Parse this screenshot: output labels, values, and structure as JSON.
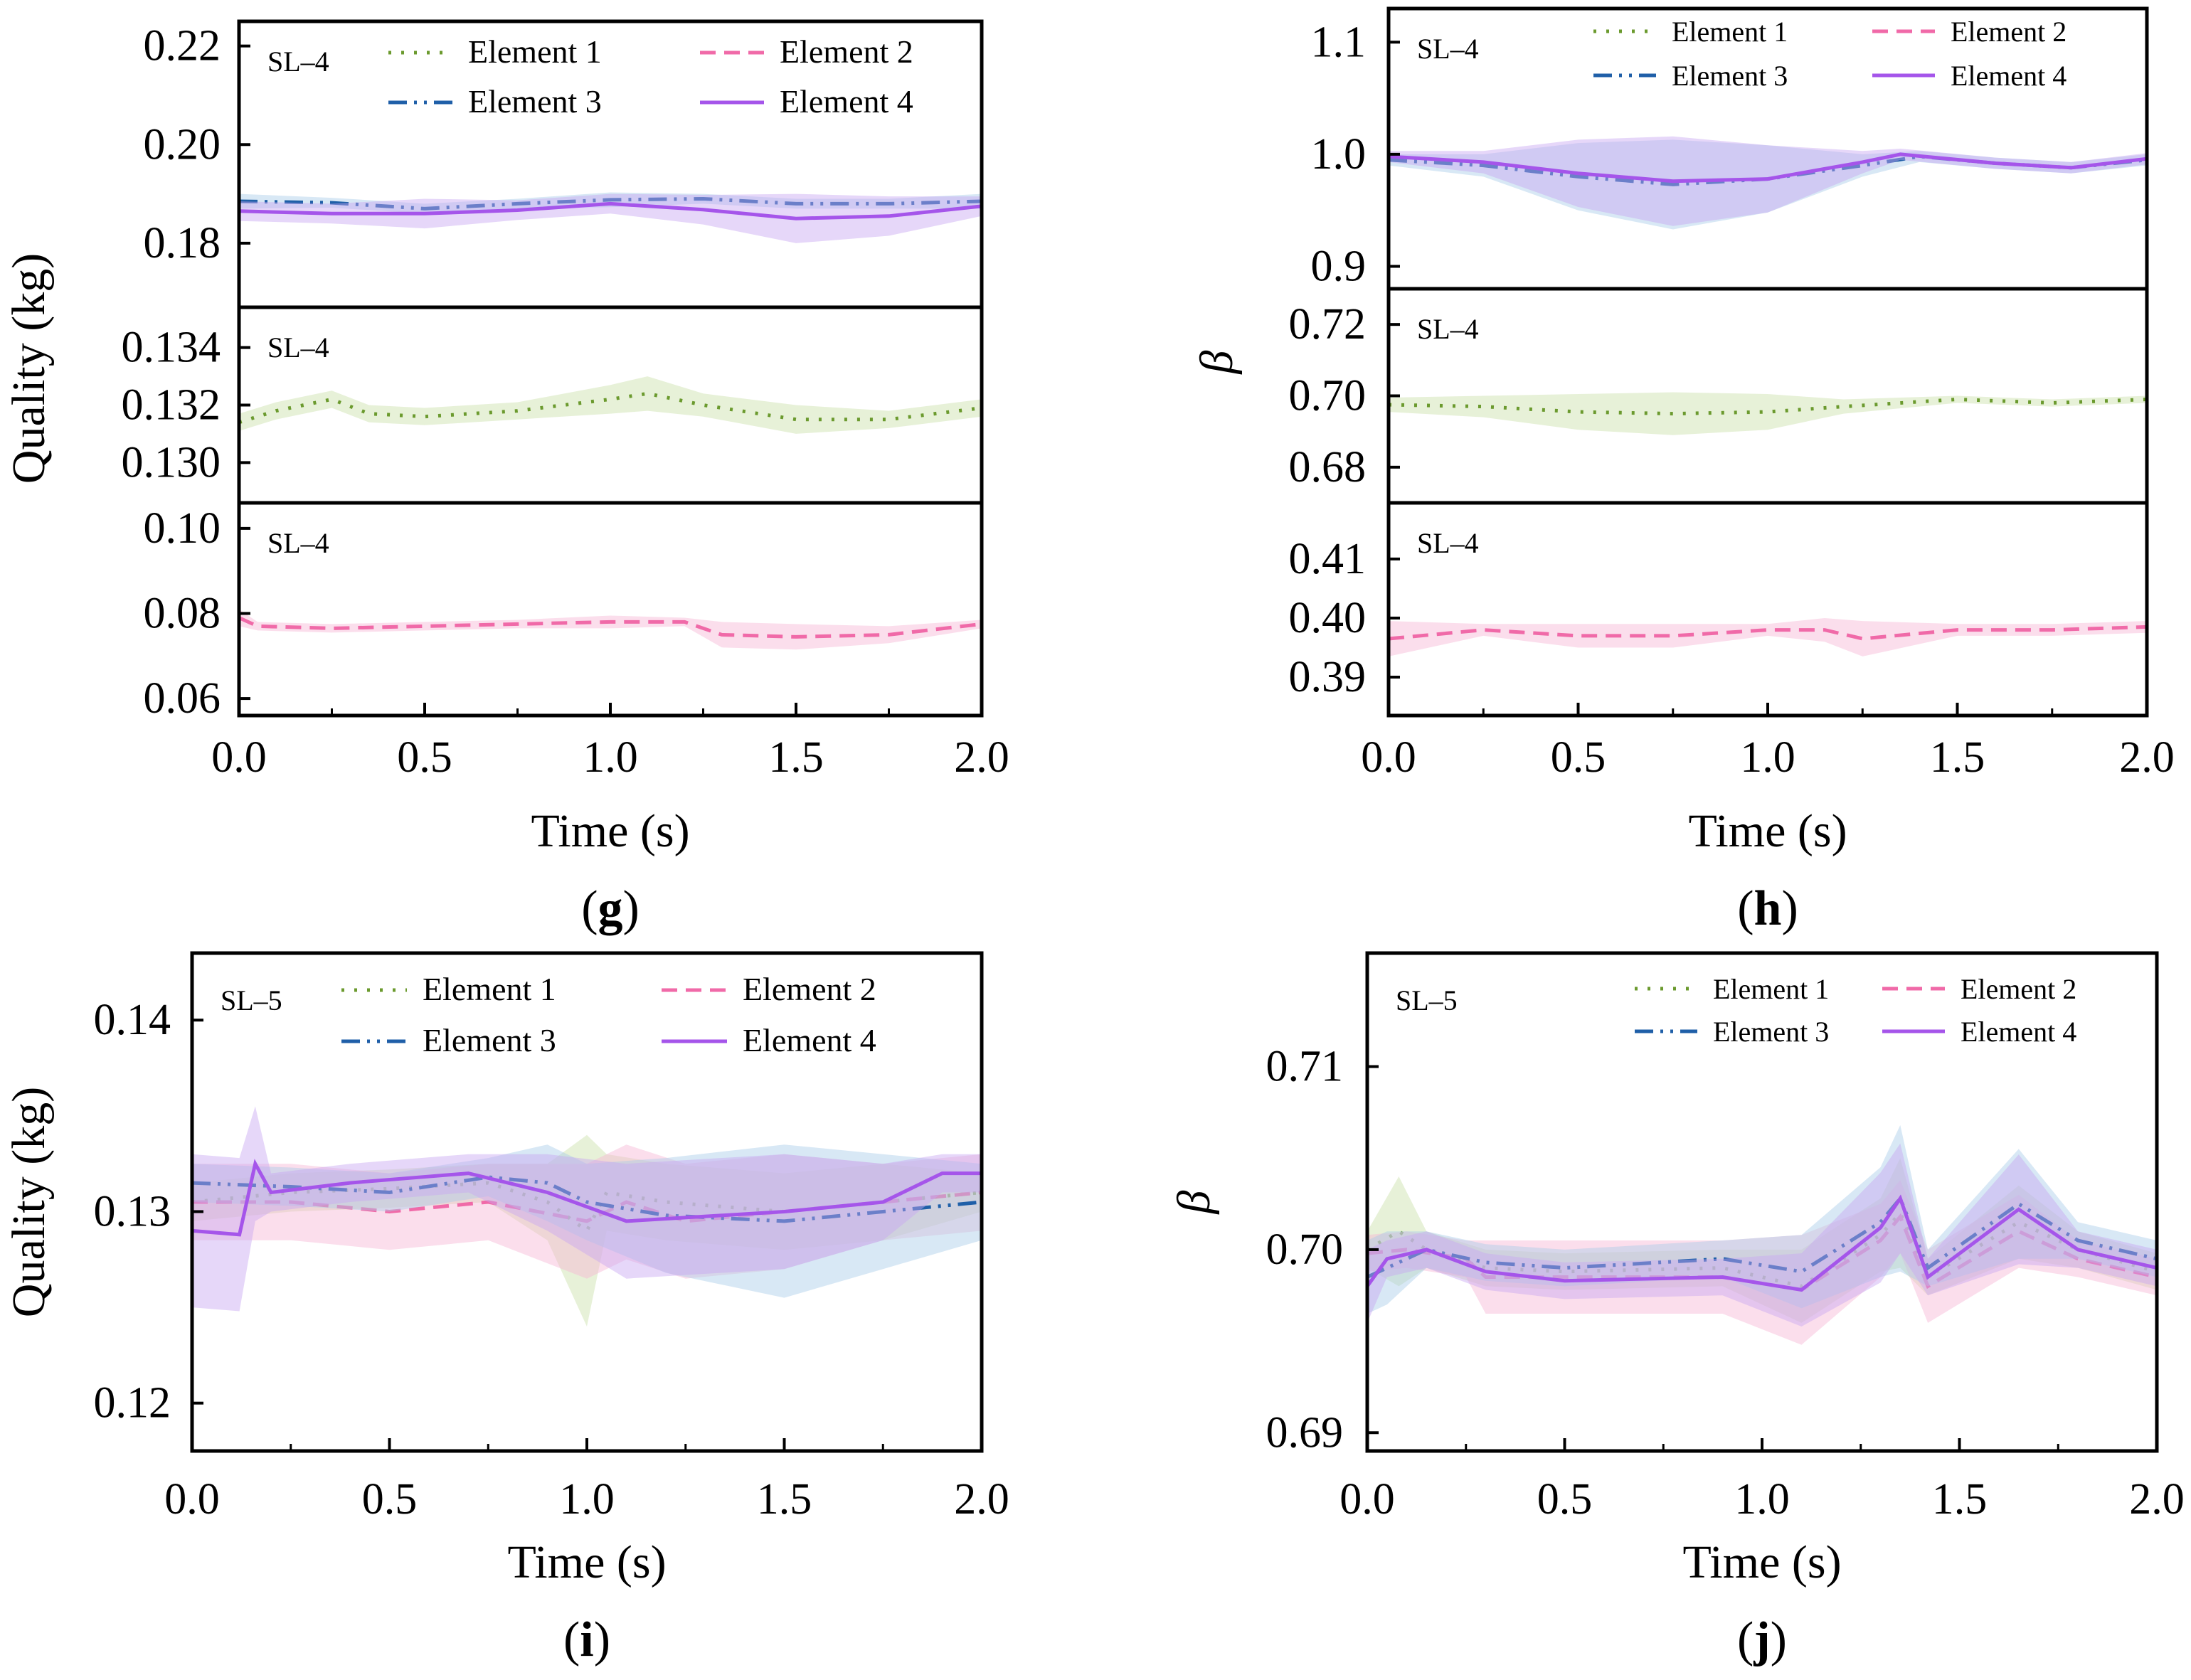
{
  "figure": {
    "colors": {
      "element_1": "#6b9a2e",
      "element_2": "#f06aa8",
      "element_3": "#1f5fa8",
      "element_4": "#a555ea",
      "band_1": "#c9dfa8",
      "band_2": "#f7b6d4",
      "band_3": "#a8cbe8",
      "band_4": "#c8a6f2",
      "axis": "#000000"
    }
  },
  "chart_data": [
    {
      "panel": "g",
      "tag_prefix": "(",
      "tag_letter": "g",
      "tag_suffix": ")",
      "type": "line",
      "xlabel": "Time (s)",
      "ylabel": "Quality (kg)",
      "xlim": [
        0,
        2
      ],
      "xticks": [
        "0.0",
        "0.5",
        "1.0",
        "1.5",
        "2.0"
      ],
      "subplots": [
        {
          "label": "SL–4",
          "ylim": [
            0.167,
            0.225
          ],
          "yticks": [
            0.18,
            0.2,
            0.22
          ],
          "ytick_labels": [
            "0.18",
            "0.20",
            "0.22"
          ],
          "legend": [
            "Element 1",
            "Element 2",
            "Element 3",
            "Element 4"
          ],
          "series": [
            {
              "name": "Element 3",
              "x": [
                0,
                0.25,
                0.5,
                0.75,
                1.0,
                1.25,
                1.5,
                1.75,
                2.0
              ],
              "y": [
                0.1885,
                0.1882,
                0.187,
                0.188,
                0.1888,
                0.189,
                0.188,
                0.188,
                0.1885
              ],
              "band": [
                0.0015,
                0.001,
                0.001,
                0.001,
                0.0015,
                0.001,
                0.001,
                0.001,
                0.0015
              ]
            },
            {
              "name": "Element 4",
              "x": [
                0,
                0.25,
                0.5,
                0.75,
                1.0,
                1.25,
                1.5,
                1.75,
                2.0
              ],
              "y": [
                0.1865,
                0.186,
                0.186,
                0.1867,
                0.188,
                0.1868,
                0.185,
                0.1855,
                0.1875
              ],
              "band": [
                0.002,
                0.002,
                0.003,
                0.002,
                0.002,
                0.003,
                0.005,
                0.004,
                0.002
              ]
            }
          ]
        },
        {
          "label": "SL–4",
          "ylim": [
            0.1286,
            0.1354
          ],
          "yticks": [
            0.13,
            0.132,
            0.134
          ],
          "ytick_labels": [
            "0.130",
            "0.132",
            "0.134"
          ],
          "series": [
            {
              "name": "Element 1",
              "x": [
                0,
                0.1,
                0.25,
                0.35,
                0.5,
                0.75,
                1.0,
                1.1,
                1.25,
                1.5,
                1.75,
                2.0
              ],
              "y": [
                0.1314,
                0.1318,
                0.1322,
                0.1317,
                0.1316,
                0.1318,
                0.1322,
                0.1324,
                0.132,
                0.1315,
                0.1315,
                0.1319
              ],
              "band": [
                0.0003,
                0.0003,
                0.0003,
                0.0003,
                0.0003,
                0.0003,
                0.0005,
                0.0006,
                0.0004,
                0.0005,
                0.0003,
                0.0003
              ]
            }
          ]
        },
        {
          "label": "SL–4",
          "ylim": [
            0.056,
            0.106
          ],
          "yticks": [
            0.06,
            0.08,
            0.1
          ],
          "ytick_labels": [
            "0.06",
            "0.08",
            "0.10"
          ],
          "series": [
            {
              "name": "Element 2",
              "x": [
                0,
                0.05,
                0.25,
                0.5,
                0.75,
                1.0,
                1.2,
                1.3,
                1.5,
                1.75,
                2.0
              ],
              "y": [
                0.079,
                0.077,
                0.0765,
                0.077,
                0.0775,
                0.078,
                0.078,
                0.075,
                0.0745,
                0.075,
                0.0775
              ],
              "band": [
                0.002,
                0.001,
                0.001,
                0.001,
                0.001,
                0.0015,
                0.001,
                0.003,
                0.003,
                0.002,
                0.001
              ]
            }
          ]
        }
      ]
    },
    {
      "panel": "h",
      "tag_prefix": "(",
      "tag_letter": "h",
      "tag_suffix": ")",
      "type": "line",
      "xlabel": "Time (s)",
      "ylabel": "β",
      "xlim": [
        0,
        2
      ],
      "xticks": [
        "0.0",
        "0.5",
        "1.0",
        "1.5",
        "2.0"
      ],
      "subplots": [
        {
          "label": "SL–4",
          "ylim": [
            0.88,
            1.13
          ],
          "yticks": [
            0.9,
            1.0,
            1.1
          ],
          "ytick_labels": [
            "0.9",
            "1.0",
            "1.1"
          ],
          "legend": [
            "Element 1",
            "Element 2",
            "Element 3",
            "Element 4"
          ],
          "series": [
            {
              "name": "Element 3",
              "x": [
                0,
                0.25,
                0.5,
                0.75,
                1.0,
                1.25,
                1.4,
                1.6,
                1.8,
                2.0
              ],
              "y": [
                0.995,
                0.99,
                0.98,
                0.973,
                0.978,
                0.99,
                0.998,
                0.992,
                0.988,
                0.995
              ],
              "band": [
                0.005,
                0.01,
                0.03,
                0.04,
                0.03,
                0.01,
                0.005,
                0.005,
                0.005,
                0.005
              ]
            },
            {
              "name": "Element 4",
              "x": [
                0,
                0.25,
                0.5,
                0.75,
                1.0,
                1.25,
                1.35,
                1.6,
                1.8,
                2.0
              ],
              "y": [
                0.998,
                0.993,
                0.983,
                0.976,
                0.978,
                0.993,
                1.0,
                0.992,
                0.988,
                0.996
              ],
              "band": [
                0.005,
                0.01,
                0.03,
                0.04,
                0.03,
                0.01,
                0.005,
                0.005,
                0.005,
                0.005
              ]
            }
          ]
        },
        {
          "label": "SL–4",
          "ylim": [
            0.67,
            0.73
          ],
          "yticks": [
            0.68,
            0.7,
            0.72
          ],
          "ytick_labels": [
            "0.68",
            "0.70",
            "0.72"
          ],
          "series": [
            {
              "name": "Element 1",
              "x": [
                0,
                0.25,
                0.5,
                0.75,
                1.0,
                1.2,
                1.5,
                1.75,
                2.0
              ],
              "y": [
                0.6975,
                0.697,
                0.6955,
                0.695,
                0.6955,
                0.697,
                0.699,
                0.698,
                0.699
              ],
              "band": [
                0.002,
                0.003,
                0.005,
                0.006,
                0.005,
                0.002,
                0.001,
                0.001,
                0.001
              ]
            }
          ]
        },
        {
          "label": "SL–4",
          "ylim": [
            0.3835,
            0.4195
          ],
          "yticks": [
            0.39,
            0.4,
            0.41
          ],
          "ytick_labels": [
            "0.39",
            "0.40",
            "0.41"
          ],
          "series": [
            {
              "name": "Element 2",
              "x": [
                0,
                0.25,
                0.5,
                0.75,
                1.0,
                1.15,
                1.25,
                1.5,
                1.75,
                2.0
              ],
              "y": [
                0.3965,
                0.398,
                0.397,
                0.397,
                0.398,
                0.398,
                0.3965,
                0.398,
                0.398,
                0.3985
              ],
              "band": [
                0.003,
                0.001,
                0.002,
                0.002,
                0.001,
                0.002,
                0.003,
                0.001,
                0.001,
                0.001
              ]
            }
          ]
        }
      ]
    },
    {
      "panel": "i",
      "tag_prefix": "(",
      "tag_letter": "i",
      "tag_suffix": ")",
      "type": "line",
      "xlabel": "Time (s)",
      "ylabel": "Quality (kg)",
      "label": "SL–5",
      "xlim": [
        0,
        2
      ],
      "xticks": [
        "0.0",
        "0.5",
        "1.0",
        "1.5",
        "2.0"
      ],
      "ylim": [
        0.1175,
        0.1435
      ],
      "yticks": [
        0.12,
        0.13,
        0.14
      ],
      "ytick_labels": [
        "0.12",
        "0.13",
        "0.14"
      ],
      "legend": [
        "Element 1",
        "Element 2",
        "Element 3",
        "Element 4"
      ],
      "series": [
        {
          "name": "Element 1",
          "x": [
            0,
            0.25,
            0.5,
            0.75,
            0.9,
            1.0,
            1.05,
            1.2,
            1.5,
            1.75,
            2.0
          ],
          "y": [
            0.1305,
            0.131,
            0.1312,
            0.1315,
            0.1305,
            0.129,
            0.131,
            0.1305,
            0.13,
            0.1305,
            0.131
          ],
          "band": [
            0.001,
            0.001,
            0.001,
            0.001,
            0.002,
            0.005,
            0.002,
            0.002,
            0.002,
            0.002,
            0.001
          ]
        },
        {
          "name": "Element 2",
          "x": [
            0,
            0.25,
            0.5,
            0.75,
            1.0,
            1.1,
            1.25,
            1.5,
            1.75,
            2.0
          ],
          "y": [
            0.1305,
            0.1305,
            0.13,
            0.1305,
            0.1295,
            0.1305,
            0.1295,
            0.13,
            0.1305,
            0.131
          ],
          "band": [
            0.002,
            0.002,
            0.002,
            0.002,
            0.003,
            0.003,
            0.003,
            0.003,
            0.002,
            0.002
          ]
        },
        {
          "name": "Element 3",
          "x": [
            0,
            0.25,
            0.5,
            0.75,
            0.9,
            1.0,
            1.2,
            1.5,
            1.75,
            2.0
          ],
          "y": [
            0.1315,
            0.1313,
            0.131,
            0.1318,
            0.1315,
            0.1305,
            0.1298,
            0.1295,
            0.13,
            0.1305
          ],
          "band": [
            0.001,
            0.001,
            0.001,
            0.001,
            0.002,
            0.002,
            0.003,
            0.004,
            0.003,
            0.002
          ]
        },
        {
          "name": "Element 4",
          "x": [
            0,
            0.12,
            0.16,
            0.2,
            0.4,
            0.7,
            0.9,
            1.1,
            1.5,
            1.75,
            1.9,
            2.0
          ],
          "y": [
            0.129,
            0.1288,
            0.1325,
            0.131,
            0.1315,
            0.132,
            0.131,
            0.1295,
            0.13,
            0.1305,
            0.132,
            0.132
          ],
          "band": [
            0.004,
            0.004,
            0.003,
            0.001,
            0.001,
            0.001,
            0.002,
            0.003,
            0.003,
            0.002,
            0.001,
            0.001
          ]
        }
      ]
    },
    {
      "panel": "j",
      "tag_prefix": "(",
      "tag_letter": "j",
      "tag_suffix": ")",
      "type": "line",
      "xlabel": "Time (s)",
      "ylabel": "β",
      "label": "SL–5",
      "xlim": [
        0,
        2
      ],
      "xticks": [
        "0.0",
        "0.5",
        "1.0",
        "1.5",
        "2.0"
      ],
      "ylim": [
        0.689,
        0.7162
      ],
      "yticks": [
        0.69,
        0.7,
        0.71
      ],
      "ytick_labels": [
        "0.69",
        "0.70",
        "0.71"
      ],
      "legend": [
        "Element 1",
        "Element 2",
        "Element 3",
        "Element 4"
      ],
      "series": [
        {
          "name": "Element 1",
          "x": [
            0,
            0.08,
            0.15,
            0.3,
            0.5,
            0.9,
            1.1,
            1.3,
            1.35,
            1.42,
            1.65,
            1.8,
            2.0
          ],
          "y": [
            0.7,
            0.701,
            0.7,
            0.699,
            0.6988,
            0.699,
            0.698,
            0.7008,
            0.702,
            0.6985,
            0.7015,
            0.7,
            0.6988
          ],
          "band": [
            0.001,
            0.003,
            0.001,
            0.001,
            0.001,
            0.001,
            0.002,
            0.002,
            0.003,
            0.001,
            0.002,
            0.001,
            0.001
          ]
        },
        {
          "name": "Element 2",
          "x": [
            0,
            0.1,
            0.25,
            0.3,
            0.5,
            0.9,
            1.1,
            1.3,
            1.35,
            1.42,
            1.65,
            1.8,
            2.0
          ],
          "y": [
            0.6998,
            0.7,
            0.6995,
            0.6985,
            0.6985,
            0.6985,
            0.6978,
            0.7005,
            0.7018,
            0.698,
            0.701,
            0.6995,
            0.6985
          ],
          "band": [
            0.001,
            0.001,
            0.001,
            0.002,
            0.002,
            0.002,
            0.003,
            0.002,
            0.002,
            0.002,
            0.002,
            0.001,
            0.001
          ]
        },
        {
          "name": "Element 3",
          "x": [
            0,
            0.05,
            0.15,
            0.3,
            0.5,
            0.9,
            1.1,
            1.3,
            1.35,
            1.42,
            1.65,
            1.8,
            2.0
          ],
          "y": [
            0.6985,
            0.699,
            0.7,
            0.6993,
            0.699,
            0.6995,
            0.6988,
            0.7015,
            0.7028,
            0.699,
            0.7025,
            0.7005,
            0.6995
          ],
          "band": [
            0.002,
            0.002,
            0.001,
            0.001,
            0.001,
            0.001,
            0.002,
            0.003,
            0.004,
            0.001,
            0.003,
            0.001,
            0.001
          ]
        },
        {
          "name": "Element 4",
          "x": [
            0,
            0.05,
            0.15,
            0.3,
            0.5,
            0.9,
            1.1,
            1.3,
            1.35,
            1.42,
            1.65,
            1.8,
            2.0
          ],
          "y": [
            0.698,
            0.6995,
            0.7,
            0.6988,
            0.6983,
            0.6985,
            0.6978,
            0.7012,
            0.7028,
            0.6985,
            0.7022,
            0.7,
            0.699
          ],
          "band": [
            0.002,
            0.001,
            0.001,
            0.001,
            0.001,
            0.001,
            0.002,
            0.003,
            0.003,
            0.001,
            0.003,
            0.001,
            0.001
          ]
        }
      ]
    }
  ]
}
